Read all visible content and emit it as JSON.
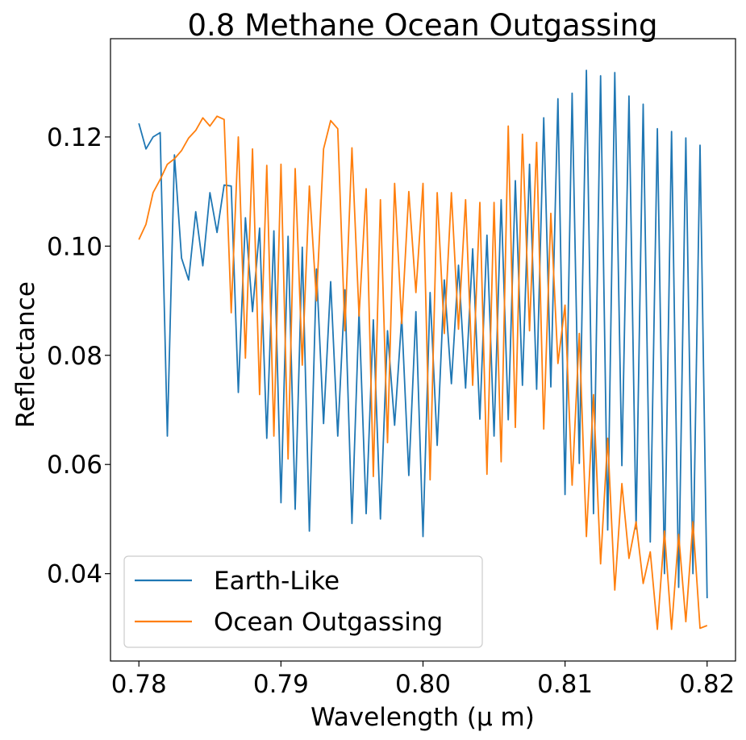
{
  "chart_data": {
    "type": "line",
    "title": "0.8 Methane Ocean Outgassing",
    "xlabel": "Wavelength (μ m)",
    "ylabel": "Reflectance",
    "xlim": [
      0.778,
      0.822
    ],
    "ylim": [
      0.024,
      0.138
    ],
    "xticks": [
      0.78,
      0.79,
      0.8,
      0.81,
      0.82
    ],
    "xtick_labels": [
      "0.78",
      "0.79",
      "0.80",
      "0.81",
      "0.82"
    ],
    "yticks": [
      0.04,
      0.06,
      0.08,
      0.1,
      0.12
    ],
    "ytick_labels": [
      "0.04",
      "0.06",
      "0.08",
      "0.10",
      "0.12"
    ],
    "grid": false,
    "legend_position": "lower-left",
    "series": [
      {
        "name": "Earth-Like",
        "color": "#1f77b4",
        "x": [
          0.78,
          0.7805,
          0.781,
          0.7815,
          0.782,
          0.7825,
          0.783,
          0.7835,
          0.784,
          0.7845,
          0.785,
          0.7855,
          0.786,
          0.7865,
          0.787,
          0.7875,
          0.788,
          0.7885,
          0.789,
          0.7895,
          0.79,
          0.7905,
          0.791,
          0.7915,
          0.792,
          0.7925,
          0.793,
          0.7935,
          0.794,
          0.7945,
          0.795,
          0.7955,
          0.796,
          0.7965,
          0.797,
          0.7975,
          0.798,
          0.7985,
          0.799,
          0.7995,
          0.8,
          0.8005,
          0.801,
          0.8015,
          0.802,
          0.8025,
          0.803,
          0.8035,
          0.804,
          0.8045,
          0.805,
          0.8055,
          0.806,
          0.8065,
          0.807,
          0.8075,
          0.808,
          0.8085,
          0.809,
          0.8095,
          0.81,
          0.8105,
          0.811,
          0.8115,
          0.812,
          0.8125,
          0.813,
          0.8135,
          0.814,
          0.8145,
          0.815,
          0.8155,
          0.816,
          0.8165,
          0.817,
          0.8175,
          0.818,
          0.8185,
          0.819,
          0.8195,
          0.82
        ],
        "y": [
          0.1225,
          0.1178,
          0.12,
          0.1208,
          0.0652,
          0.1167,
          0.0978,
          0.0938,
          0.1063,
          0.0964,
          0.1098,
          0.1025,
          0.1112,
          0.111,
          0.0732,
          0.1052,
          0.088,
          0.1033,
          0.0648,
          0.1028,
          0.053,
          0.1018,
          0.0518,
          0.0998,
          0.0478,
          0.0958,
          0.0675,
          0.0935,
          0.0652,
          0.092,
          0.0492,
          0.088,
          0.051,
          0.0865,
          0.05,
          0.0845,
          0.0672,
          0.087,
          0.058,
          0.088,
          0.0468,
          0.0915,
          0.0635,
          0.0938,
          0.0748,
          0.0965,
          0.074,
          0.0995,
          0.0683,
          0.102,
          0.0652,
          0.1085,
          0.0682,
          0.112,
          0.0745,
          0.115,
          0.0738,
          0.1235,
          0.0742,
          0.127,
          0.0545,
          0.128,
          0.0602,
          0.1322,
          0.051,
          0.1312,
          0.048,
          0.1318,
          0.0598,
          0.1275,
          0.0482,
          0.126,
          0.0458,
          0.1215,
          0.04,
          0.121,
          0.0375,
          0.1198,
          0.04,
          0.1185,
          0.0355
        ]
      },
      {
        "name": "Ocean Outgassing",
        "color": "#ff7f0e",
        "x": [
          0.78,
          0.7805,
          0.781,
          0.7815,
          0.782,
          0.7825,
          0.783,
          0.7835,
          0.784,
          0.7845,
          0.785,
          0.7855,
          0.786,
          0.7865,
          0.787,
          0.7875,
          0.788,
          0.7885,
          0.789,
          0.7895,
          0.79,
          0.7905,
          0.791,
          0.7915,
          0.792,
          0.7925,
          0.793,
          0.7935,
          0.794,
          0.7945,
          0.795,
          0.7955,
          0.796,
          0.7965,
          0.797,
          0.7975,
          0.798,
          0.7985,
          0.799,
          0.7995,
          0.8,
          0.8005,
          0.801,
          0.8015,
          0.802,
          0.8025,
          0.803,
          0.8035,
          0.804,
          0.8045,
          0.805,
          0.8055,
          0.806,
          0.8065,
          0.807,
          0.8075,
          0.808,
          0.8085,
          0.809,
          0.8095,
          0.81,
          0.8105,
          0.811,
          0.8115,
          0.812,
          0.8125,
          0.813,
          0.8135,
          0.814,
          0.8145,
          0.815,
          0.8155,
          0.816,
          0.8165,
          0.817,
          0.8175,
          0.818,
          0.8185,
          0.819,
          0.8195,
          0.82
        ],
        "y": [
          0.1012,
          0.104,
          0.1098,
          0.1122,
          0.115,
          0.116,
          0.1175,
          0.1198,
          0.1212,
          0.1235,
          0.122,
          0.1238,
          0.1232,
          0.0878,
          0.12,
          0.0795,
          0.1178,
          0.0728,
          0.1148,
          0.0652,
          0.115,
          0.061,
          0.1142,
          0.0782,
          0.111,
          0.09,
          0.1178,
          0.123,
          0.1215,
          0.0845,
          0.118,
          0.0872,
          0.1105,
          0.0578,
          0.1085,
          0.064,
          0.1115,
          0.0858,
          0.11,
          0.0915,
          0.1115,
          0.0572,
          0.1098,
          0.084,
          0.1098,
          0.0848,
          0.1085,
          0.0745,
          0.108,
          0.0582,
          0.108,
          0.0605,
          0.122,
          0.0668,
          0.1205,
          0.0845,
          0.119,
          0.0665,
          0.106,
          0.0785,
          0.0892,
          0.0562,
          0.084,
          0.0468,
          0.0728,
          0.0418,
          0.0648,
          0.037,
          0.0565,
          0.0428,
          0.0495,
          0.0382,
          0.044,
          0.0298,
          0.0478,
          0.0298,
          0.0472,
          0.0312,
          0.0495,
          0.03,
          0.0305
        ]
      }
    ]
  }
}
